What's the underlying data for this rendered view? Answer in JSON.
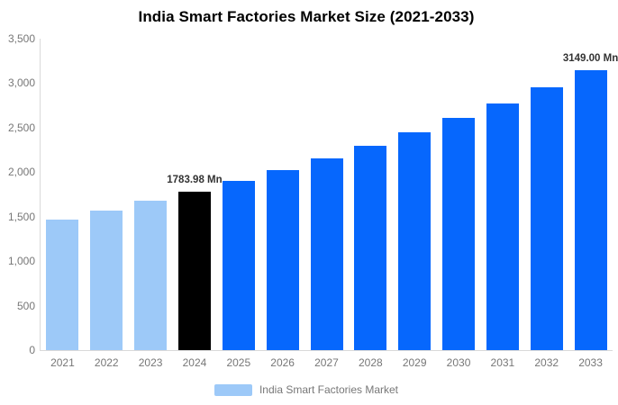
{
  "chart_data": {
    "type": "bar",
    "title": "India Smart Factories Market Size (2021-2033)",
    "unit": "Mn",
    "categories": [
      "2021",
      "2022",
      "2023",
      "2024",
      "2025",
      "2026",
      "2027",
      "2028",
      "2029",
      "2030",
      "2031",
      "2032",
      "2033"
    ],
    "values": [
      1470,
      1570,
      1675,
      1783.98,
      1900,
      2025,
      2156,
      2297,
      2446,
      2606,
      2776,
      2957,
      3149
    ],
    "ylim": [
      0,
      3500
    ],
    "ytick_step": 500,
    "ytick_labels": [
      "0",
      "500",
      "1,000",
      "1,500",
      "2,000",
      "2,500",
      "3,000",
      "3,500"
    ],
    "grid": false,
    "legend_position": "bottom",
    "data_labels": [
      {
        "category": "2024",
        "text": "1783.98 Mn"
      },
      {
        "category": "2033",
        "text": "3149.00 Mn"
      }
    ],
    "bar_colors": [
      "#9DC9F8",
      "#9DC9F8",
      "#9DC9F8",
      "#000000",
      "#0667FD",
      "#0667FD",
      "#0667FD",
      "#0667FD",
      "#0667FD",
      "#0667FD",
      "#0667FD",
      "#0667FD",
      "#0667FD"
    ]
  },
  "legend": {
    "label": "India Smart Factories Market",
    "swatch_color": "#9DC9F8"
  },
  "colors": {
    "background": "#FFFFFF",
    "title_text": "#000000",
    "axis_line": "#D9D9D9",
    "axis_text": "#777777",
    "data_label_text": "#333333",
    "legend_text": "#777777"
  }
}
